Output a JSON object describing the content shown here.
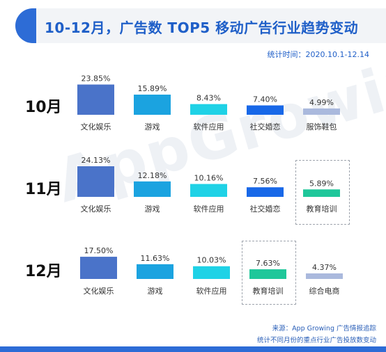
{
  "title": "10-12月，广告数 TOP5 移动广告行业趋势变动",
  "stat_time": "统计时间：2020.10.1-12.14",
  "watermark": "AppGrowing",
  "footer": {
    "source": "来源：App Growing 广告情报追踪",
    "note": "统计不同月份的重点行业广告投放数变动"
  },
  "colors": {
    "title": "#1f5fc8",
    "accent": "#2d6cd6",
    "rank1": "#4a73c9",
    "rank2": "#1ba3e0",
    "rank3": "#1fd2e6",
    "social": "#1868e8",
    "education": "#1fc79a",
    "light": "#aab9dd"
  },
  "chart_data": {
    "type": "bar",
    "title": "10-12月，广告数 TOP5 移动广告行业趋势变动",
    "months": [
      {
        "name": "10月",
        "bars": [
          {
            "category": "文化娱乐",
            "value": 23.85,
            "label": "23.85%",
            "color": "#4a73c9"
          },
          {
            "category": "游戏",
            "value": 15.89,
            "label": "15.89%",
            "color": "#1ba3e0"
          },
          {
            "category": "软件应用",
            "value": 8.43,
            "label": "8.43%",
            "color": "#1fd2e6"
          },
          {
            "category": "社交婚恋",
            "value": 7.4,
            "label": "7.40%",
            "color": "#1868e8"
          },
          {
            "category": "服饰鞋包",
            "value": 4.99,
            "label": "4.99%",
            "color": "#aab9dd"
          }
        ]
      },
      {
        "name": "11月",
        "bars": [
          {
            "category": "文化娱乐",
            "value": 24.13,
            "label": "24.13%",
            "color": "#4a73c9"
          },
          {
            "category": "游戏",
            "value": 12.18,
            "label": "12.18%",
            "color": "#1ba3e0"
          },
          {
            "category": "软件应用",
            "value": 10.16,
            "label": "10.16%",
            "color": "#1fd2e6"
          },
          {
            "category": "社交婚恋",
            "value": 7.56,
            "label": "7.56%",
            "color": "#1868e8"
          },
          {
            "category": "教育培训",
            "value": 5.89,
            "label": "5.89%",
            "color": "#1fc79a",
            "highlight": true
          }
        ]
      },
      {
        "name": "12月",
        "bars": [
          {
            "category": "文化娱乐",
            "value": 17.5,
            "label": "17.50%",
            "color": "#4a73c9"
          },
          {
            "category": "游戏",
            "value": 11.63,
            "label": "11.63%",
            "color": "#1ba3e0"
          },
          {
            "category": "软件应用",
            "value": 10.03,
            "label": "10.03%",
            "color": "#1fd2e6"
          },
          {
            "category": "教育培训",
            "value": 7.63,
            "label": "7.63%",
            "color": "#1fc79a",
            "highlight": true
          },
          {
            "category": "综合电商",
            "value": 4.37,
            "label": "4.37%",
            "color": "#aab9dd"
          }
        ]
      }
    ]
  }
}
